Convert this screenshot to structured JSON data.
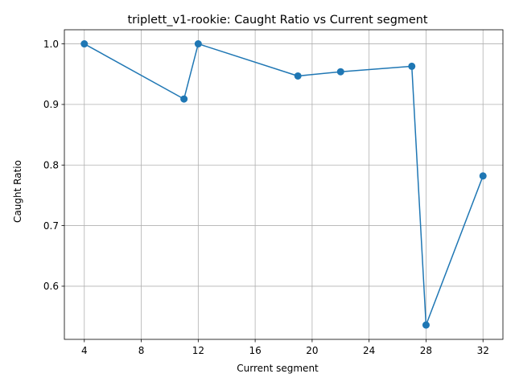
{
  "chart_data": {
    "type": "line",
    "title": "triplett_v1-rookie: Caught Ratio vs Current segment",
    "xlabel": "Current segment",
    "ylabel": "Caught Ratio",
    "xlim": [
      2.6,
      33.4
    ],
    "ylim": [
      0.5123,
      1.0233
    ],
    "xticks": [
      4,
      8,
      12,
      16,
      20,
      24,
      28,
      32
    ],
    "xtick_labels": [
      "4",
      "8",
      "12",
      "16",
      "20",
      "24",
      "28",
      "32"
    ],
    "yticks": [
      0.6,
      0.7,
      0.8,
      0.9,
      1.0
    ],
    "ytick_labels": [
      "0.6",
      "0.7",
      "0.8",
      "0.9",
      "1.0"
    ],
    "grid": true,
    "series": [
      {
        "name": "Caught Ratio",
        "color": "#1f77b4",
        "marker": "circle",
        "x": [
          4,
          11,
          12,
          19,
          22,
          27,
          28,
          32
        ],
        "y": [
          1.0,
          0.909,
          1.0,
          0.947,
          0.954,
          0.963,
          0.536,
          0.782
        ]
      }
    ]
  }
}
